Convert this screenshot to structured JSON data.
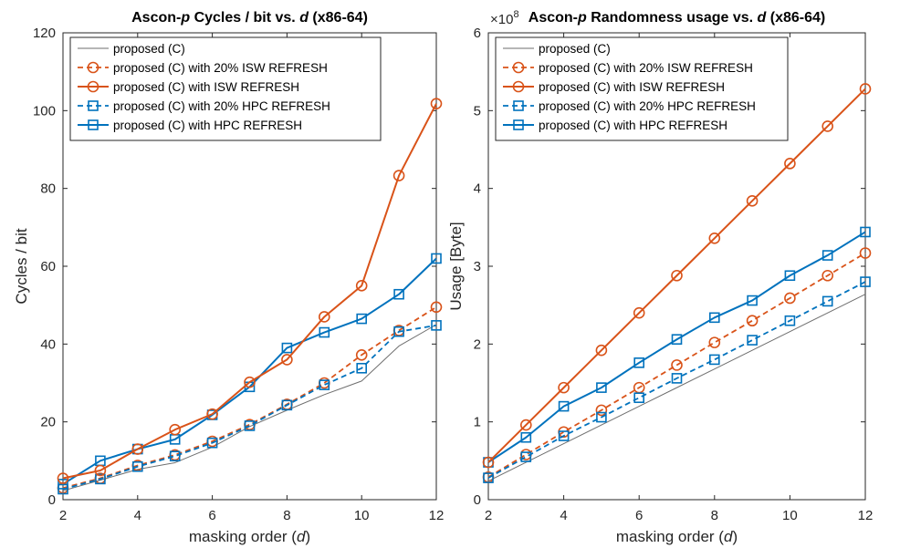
{
  "chart_data": [
    {
      "type": "line",
      "title_prefix": "Ascon-",
      "title_italic": "p",
      "title_mid": " Cycles / bit vs. ",
      "title_var": "d",
      "title_suffix": " (x86-64)",
      "xlabel_prefix": "masking order (",
      "xlabel_var": "d",
      "xlabel_suffix": ")",
      "ylabel": "Cycles / bit",
      "xlim": [
        2,
        12
      ],
      "ylim": [
        0,
        120
      ],
      "xticks": [
        2,
        4,
        6,
        8,
        10,
        12
      ],
      "yticks": [
        0,
        20,
        40,
        60,
        80,
        100,
        120
      ],
      "ytick_labels": [
        "0",
        "20",
        "40",
        "60",
        "80",
        "100",
        "120"
      ],
      "exponent_label": "",
      "legend_position": "top-left",
      "x": [
        2,
        3,
        4,
        5,
        6,
        7,
        8,
        9,
        10,
        11,
        12
      ],
      "series": [
        {
          "name": "proposed (C)",
          "style": "thin",
          "values": [
            2.3,
            5.0,
            7.8,
            9.5,
            13.5,
            18.8,
            23.0,
            27.0,
            30.5,
            39.5,
            45.0
          ]
        },
        {
          "name": "proposed (C) with 20% ISW REFRESH",
          "style": "dash-circle",
          "values": [
            3.0,
            5.5,
            8.8,
            11.5,
            15.0,
            19.3,
            24.5,
            30.0,
            37.2,
            43.5,
            49.5
          ]
        },
        {
          "name": "proposed (C) with ISW REFRESH",
          "style": "solid-circle",
          "values": [
            5.5,
            7.5,
            13.0,
            18.0,
            22.0,
            30.2,
            36.0,
            47.0,
            55.0,
            83.3,
            101.8
          ]
        },
        {
          "name": "proposed (C) with 20% HPC REFRESH",
          "style": "dash-square",
          "values": [
            2.7,
            5.3,
            8.5,
            11.2,
            14.6,
            19.0,
            24.3,
            29.5,
            33.8,
            43.2,
            44.8
          ]
        },
        {
          "name": "proposed (C) with HPC REFRESH",
          "style": "solid-square",
          "values": [
            4.0,
            10.0,
            13.0,
            15.5,
            21.8,
            29.0,
            39.0,
            43.0,
            46.5,
            52.8,
            62.0
          ]
        }
      ]
    },
    {
      "type": "line",
      "title_prefix": "Ascon-",
      "title_italic": "p",
      "title_mid": " Randomness usage vs. ",
      "title_var": "d",
      "title_suffix": " (x86-64)",
      "xlabel_prefix": "masking order (",
      "xlabel_var": "d",
      "xlabel_suffix": ")",
      "ylabel": "Usage [Byte]",
      "xlim": [
        2,
        12
      ],
      "ylim": [
        0,
        600000000
      ],
      "xticks": [
        2,
        4,
        6,
        8,
        10,
        12
      ],
      "yticks": [
        0,
        100000000,
        200000000,
        300000000,
        400000000,
        500000000,
        600000000
      ],
      "ytick_labels": [
        "0",
        "1",
        "2",
        "3",
        "4",
        "5",
        "6"
      ],
      "exponent_label": "×10",
      "exponent_power": "8",
      "legend_position": "top-left",
      "x": [
        2,
        3,
        4,
        5,
        6,
        7,
        8,
        9,
        10,
        11,
        12
      ],
      "series": [
        {
          "name": "proposed (C)",
          "style": "thin",
          "values": [
            24000000,
            48000000,
            72000000,
            96000000,
            120000000,
            144000000,
            168000000,
            192000000,
            216000000,
            240000000,
            264000000
          ]
        },
        {
          "name": "proposed (C) with 20% ISW REFRESH",
          "style": "dash-circle",
          "values": [
            29000000,
            58000000,
            87000000,
            115000000,
            144000000,
            173000000,
            202000000,
            230000000,
            259000000,
            288000000,
            317000000
          ]
        },
        {
          "name": "proposed (C) with ISW REFRESH",
          "style": "solid-circle",
          "values": [
            48000000,
            96000000,
            144000000,
            192000000,
            240000000,
            288000000,
            336000000,
            384000000,
            432000000,
            480000000,
            528000000
          ]
        },
        {
          "name": "proposed (C) with 20% HPC REFRESH",
          "style": "dash-square",
          "values": [
            28000000,
            55000000,
            82000000,
            106000000,
            131000000,
            156000000,
            180000000,
            205000000,
            230000000,
            255000000,
            280000000
          ]
        },
        {
          "name": "proposed (C) with HPC REFRESH",
          "style": "solid-square",
          "values": [
            48000000,
            80000000,
            120000000,
            144000000,
            176000000,
            206000000,
            234000000,
            256000000,
            288000000,
            314000000,
            344000000
          ]
        }
      ]
    }
  ],
  "colors": {
    "thin": "#6e6e6e",
    "isw": "#d95319",
    "hpc": "#0072bd",
    "axis": "#262626"
  }
}
